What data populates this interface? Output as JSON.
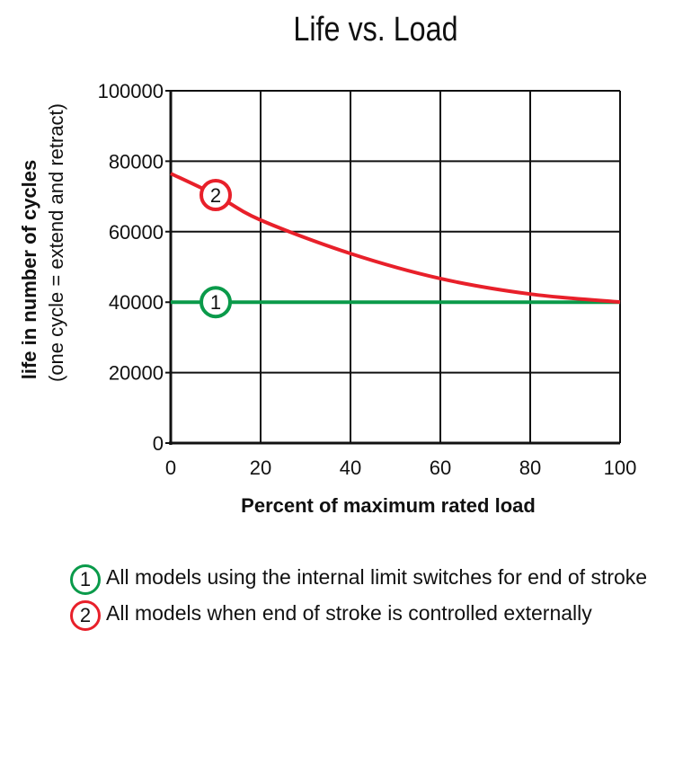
{
  "chart_data": {
    "type": "line",
    "title": "Life vs. Load",
    "xlabel": "Percent of maximum rated load",
    "ylabel": "life in number of cycles",
    "ylabel_sub": "(one cycle = extend and retract)",
    "xlim": [
      0,
      100
    ],
    "ylim": [
      0,
      100000
    ],
    "x_ticks": [
      "0",
      "20",
      "40",
      "60",
      "80",
      "100"
    ],
    "y_ticks": [
      "0",
      "20000",
      "40000",
      "60000",
      "80000",
      "100000"
    ],
    "grid": true,
    "series": [
      {
        "marker_label": "1",
        "color": "#0a9a4a",
        "x": [
          0,
          20,
          40,
          60,
          80,
          100
        ],
        "y": [
          40000,
          40000,
          40000,
          40000,
          40000,
          40000
        ]
      },
      {
        "marker_label": "2",
        "color": "#e8202a",
        "x": [
          0,
          10,
          20,
          40,
          60,
          80,
          100
        ],
        "y": [
          76500,
          70400,
          63300,
          53800,
          46700,
          42300,
          40000
        ]
      }
    ],
    "legend": [
      {
        "number": "1",
        "text": "All models using the internal limit switches for end of stroke",
        "color": "#0a9a4a"
      },
      {
        "number": "2",
        "text": "All models when end of stroke is controlled externally",
        "color": "#e8202a"
      }
    ]
  }
}
